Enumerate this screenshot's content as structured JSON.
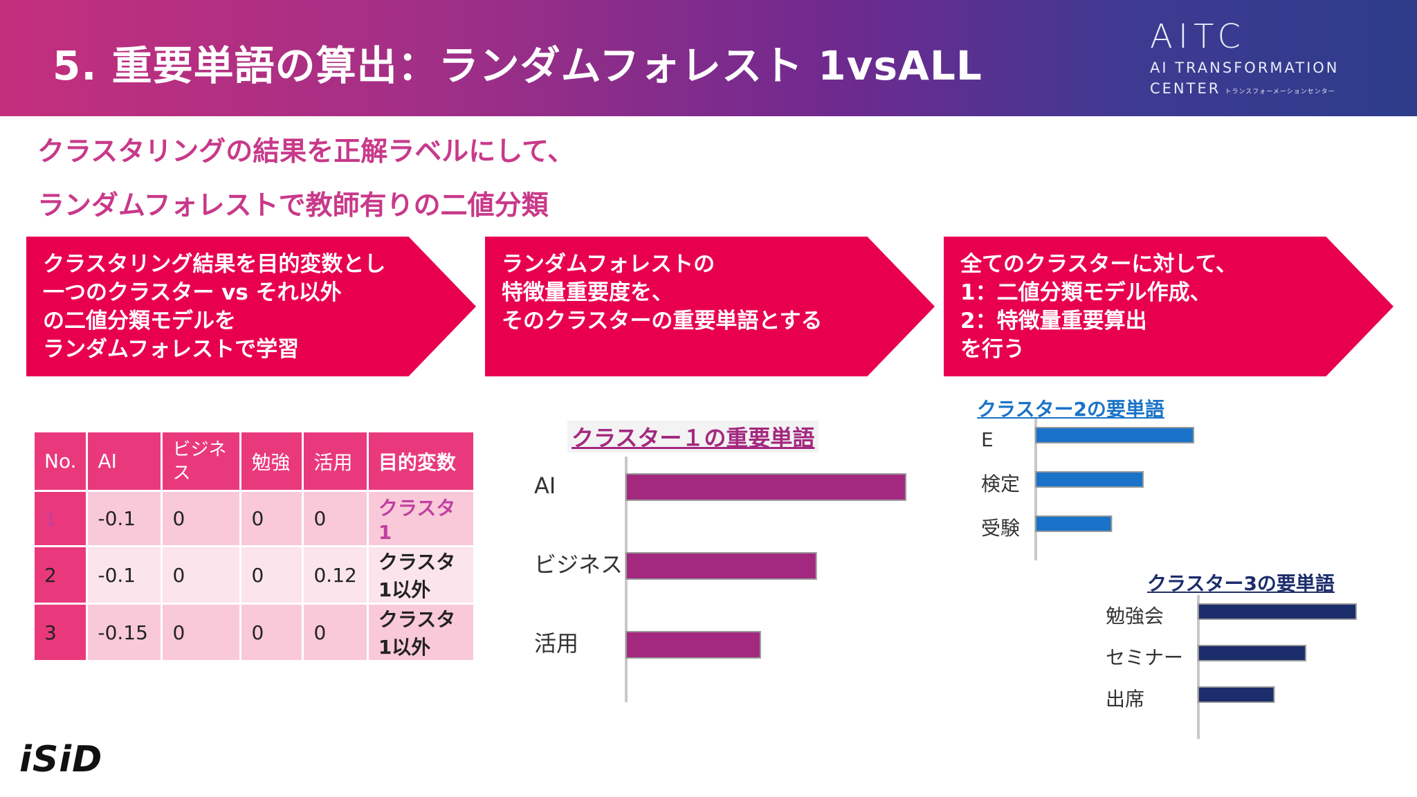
{
  "header": {
    "title": "5. 重要単語の算出：ランダムフォレスト 1vsALL",
    "logo_main": "AITC",
    "logo_sub": "AI TRANSFORMATION",
    "logo_center": "CENTER",
    "logo_center_kana": "トランスフォーメーションセンター"
  },
  "lead": {
    "line1": "クラスタリングの結果を正解ラベルにして、",
    "line2": "ランダムフォレストで教師有りの二値分類"
  },
  "steps": [
    {
      "lines": [
        "クラスタリング結果を目的変数とし",
        "一つのクラスター vs それ以外",
        "の二値分類モデルを",
        "ランダムフォレストで学習"
      ]
    },
    {
      "lines": [
        "ランダムフォレストの",
        "特徴量重要度を、",
        "そのクラスターの重要単語とする"
      ]
    },
    {
      "lines": [
        "全てのクラスターに対して、",
        "1：二値分類モデル作成、",
        "2：特徴量重要算出",
        "を行う"
      ]
    }
  ],
  "table": {
    "headers": [
      "No.",
      "AI",
      "ビジネス",
      "勉強",
      "活用",
      "目的変数"
    ],
    "rows": [
      {
        "no": "1",
        "ai": "-0.1",
        "biz": "0",
        "study": "0",
        "use": "0",
        "target": "クラスタ1"
      },
      {
        "no": "2",
        "ai": "-0.1",
        "biz": "0",
        "study": "0",
        "use": "0.12",
        "target": "クラスタ1以外"
      },
      {
        "no": "3",
        "ai": "-0.15",
        "biz": "0",
        "study": "0",
        "use": "0",
        "target": "クラスタ1以外"
      }
    ]
  },
  "chart_data": [
    {
      "type": "bar",
      "orientation": "horizontal",
      "title": "クラスター１の重要単語",
      "categories": [
        "AI",
        "ビジネス",
        "活用"
      ],
      "values": [
        1.0,
        0.68,
        0.48
      ],
      "color": "#a3287f",
      "grid": false,
      "axis_ticks": false
    },
    {
      "type": "bar",
      "orientation": "horizontal",
      "title": "クラスター2の要単語",
      "categories": [
        "E",
        "検定",
        "受験"
      ],
      "values": [
        1.0,
        0.68,
        0.48
      ],
      "color": "#1a73c8",
      "grid": false,
      "axis_ticks": false
    },
    {
      "type": "bar",
      "orientation": "horizontal",
      "title": "クラスター3の要単語",
      "categories": [
        "勉強会",
        "セミナー",
        "出席"
      ],
      "values": [
        1.0,
        0.68,
        0.48
      ],
      "color": "#1c2d6b",
      "grid": false,
      "axis_ticks": false
    }
  ],
  "footer": {
    "logo": "iSiD"
  }
}
